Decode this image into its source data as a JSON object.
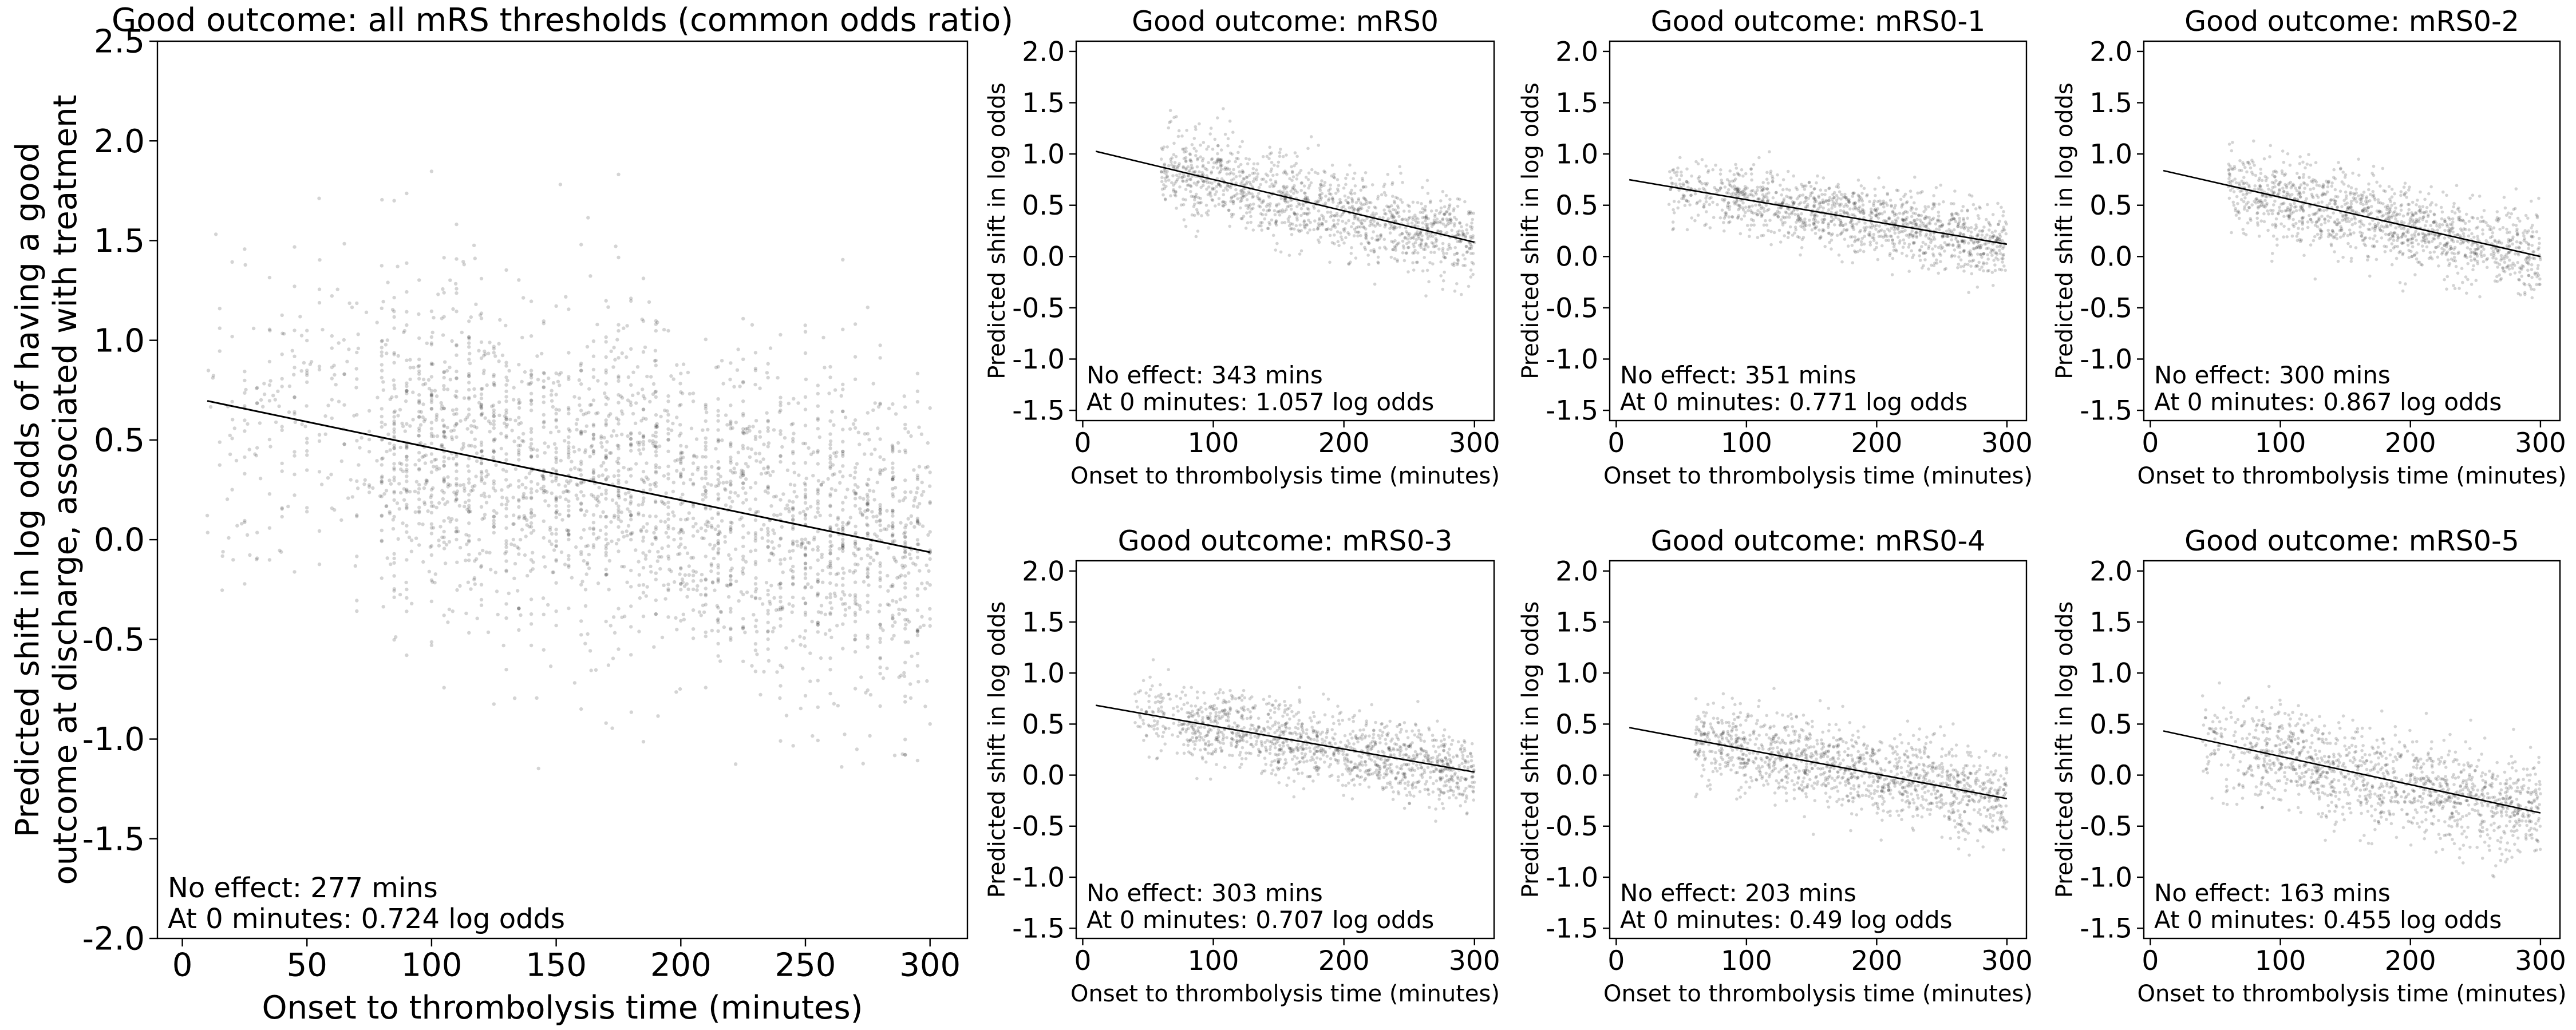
{
  "chart_data": [
    {
      "type": "scatter",
      "title": "Good outcome: all mRS thresholds (common odds ratio)",
      "xlabel": "Onset to thrombolysis time (minutes)",
      "ylabel": [
        "Predicted shift in log odds of having a good",
        "outcome at discharge, associated with treatment"
      ],
      "xlim": [
        -10,
        315
      ],
      "ylim": [
        -2.0,
        2.5
      ],
      "xticks": [
        "0",
        "50",
        "100",
        "150",
        "200",
        "250",
        "300"
      ],
      "yticks": [
        "-2.0",
        "-1.5",
        "-1.0",
        "-0.5",
        "0.0",
        "0.5",
        "1.0",
        "1.5",
        "2.0",
        "2.5"
      ],
      "trend_line": {
        "x": [
          10,
          300
        ],
        "y": [
          0.696,
          -0.063
        ]
      },
      "annotations": [
        "No effect: 277 mins",
        "At 0 minutes: 0.724 log odds"
      ],
      "no_effect_minutes": 277,
      "log_odds_at_0": 0.724,
      "points": {
        "count": 3000,
        "xrange": [
          10,
          300
        ],
        "dense_xrange": [
          80,
          300
        ],
        "center_at_0": 0.724,
        "slope_per_min": -0.00262,
        "spread": 0.42
      }
    },
    {
      "type": "scatter",
      "title": "Good outcome: mRS0",
      "xlabel": "Onset to thrombolysis time (minutes)",
      "ylabel": [
        "Predicted shift in log odds"
      ],
      "xlim": [
        -5,
        315
      ],
      "ylim": [
        -1.6,
        2.1
      ],
      "xticks": [
        "0",
        "100",
        "200",
        "300"
      ],
      "yticks": [
        "-1.5",
        "-1.0",
        "-0.5",
        "0.0",
        "0.5",
        "1.0",
        "1.5",
        "2.0"
      ],
      "trend_line": {
        "x": [
          10,
          300
        ],
        "y": [
          1.026,
          0.14
        ]
      },
      "annotations": [
        "No effect: 343 mins",
        "At 0 minutes: 1.057 log odds"
      ],
      "no_effect_minutes": 343,
      "log_odds_at_0": 1.057,
      "points": {
        "count": 1300,
        "xrange": [
          60,
          300
        ],
        "dense_xrange": [
          80,
          300
        ],
        "center_at_0": 1.057,
        "slope_per_min": -0.00308,
        "spread": 0.2
      }
    },
    {
      "type": "scatter",
      "title": "Good outcome: mRS0-1",
      "xlabel": "Onset to thrombolysis time (minutes)",
      "ylabel": [
        "Predicted shift in log odds"
      ],
      "xlim": [
        -5,
        315
      ],
      "ylim": [
        -1.6,
        2.1
      ],
      "xticks": [
        "0",
        "100",
        "200",
        "300"
      ],
      "yticks": [
        "-1.5",
        "-1.0",
        "-0.5",
        "0.0",
        "0.5",
        "1.0",
        "1.5",
        "2.0"
      ],
      "trend_line": {
        "x": [
          10,
          300
        ],
        "y": [
          0.749,
          0.12
        ]
      },
      "annotations": [
        "No effect: 351 mins",
        "At 0 minutes: 0.771 log odds"
      ],
      "no_effect_minutes": 351,
      "log_odds_at_0": 0.771,
      "points": {
        "count": 1300,
        "xrange": [
          40,
          300
        ],
        "dense_xrange": [
          80,
          300
        ],
        "center_at_0": 0.771,
        "slope_per_min": -0.0022,
        "spread": 0.17
      }
    },
    {
      "type": "scatter",
      "title": "Good outcome: mRS0-2",
      "xlabel": "Onset to thrombolysis time (minutes)",
      "ylabel": [
        "Predicted shift in log odds"
      ],
      "xlim": [
        -5,
        315
      ],
      "ylim": [
        -1.6,
        2.1
      ],
      "xticks": [
        "0",
        "100",
        "200",
        "300"
      ],
      "yticks": [
        "-1.5",
        "-1.0",
        "-0.5",
        "0.0",
        "0.5",
        "1.0",
        "1.5",
        "2.0"
      ],
      "trend_line": {
        "x": [
          10,
          300
        ],
        "y": [
          0.838,
          0.0
        ]
      },
      "annotations": [
        "No effect: 300 mins",
        "At 0 minutes: 0.867 log odds"
      ],
      "no_effect_minutes": 300,
      "log_odds_at_0": 0.867,
      "points": {
        "count": 1300,
        "xrange": [
          60,
          300
        ],
        "dense_xrange": [
          80,
          300
        ],
        "center_at_0": 0.867,
        "slope_per_min": -0.00289,
        "spread": 0.2
      }
    },
    {
      "type": "scatter",
      "title": "Good outcome: mRS0-3",
      "xlabel": "Onset to thrombolysis time (minutes)",
      "ylabel": [
        "Predicted shift in log odds"
      ],
      "xlim": [
        -5,
        315
      ],
      "ylim": [
        -1.6,
        2.1
      ],
      "xticks": [
        "0",
        "100",
        "200",
        "300"
      ],
      "yticks": [
        "-1.5",
        "-1.0",
        "-0.5",
        "0.0",
        "0.5",
        "1.0",
        "1.5",
        "2.0"
      ],
      "trend_line": {
        "x": [
          10,
          300
        ],
        "y": [
          0.684,
          0.03
        ]
      },
      "annotations": [
        "No effect: 303 mins",
        "At 0 minutes: 0.707 log odds"
      ],
      "no_effect_minutes": 303,
      "log_odds_at_0": 0.707,
      "points": {
        "count": 1300,
        "xrange": [
          40,
          300
        ],
        "dense_xrange": [
          80,
          300
        ],
        "center_at_0": 0.707,
        "slope_per_min": -0.00233,
        "spread": 0.18
      }
    },
    {
      "type": "scatter",
      "title": "Good outcome: mRS0-4",
      "xlabel": "Onset to thrombolysis time (minutes)",
      "ylabel": [
        "Predicted shift in log odds"
      ],
      "xlim": [
        -5,
        315
      ],
      "ylim": [
        -1.6,
        2.1
      ],
      "xticks": [
        "0",
        "100",
        "200",
        "300"
      ],
      "yticks": [
        "-1.5",
        "-1.0",
        "-0.5",
        "0.0",
        "0.5",
        "1.0",
        "1.5",
        "2.0"
      ],
      "trend_line": {
        "x": [
          10,
          300
        ],
        "y": [
          0.466,
          -0.23
        ]
      },
      "annotations": [
        "No effect: 203 mins",
        "At 0 minutes: 0.49 log odds"
      ],
      "no_effect_minutes": 203,
      "log_odds_at_0": 0.49,
      "points": {
        "count": 1300,
        "xrange": [
          60,
          300
        ],
        "dense_xrange": [
          80,
          300
        ],
        "center_at_0": 0.49,
        "slope_per_min": -0.0024,
        "spread": 0.2
      }
    },
    {
      "type": "scatter",
      "title": "Good outcome: mRS0-5",
      "xlabel": "Onset to thrombolysis time (minutes)",
      "ylabel": [
        "Predicted shift in log odds"
      ],
      "xlim": [
        -5,
        315
      ],
      "ylim": [
        -1.6,
        2.1
      ],
      "xticks": [
        "0",
        "100",
        "200",
        "300"
      ],
      "yticks": [
        "-1.5",
        "-1.0",
        "-0.5",
        "0.0",
        "0.5",
        "1.0",
        "1.5",
        "2.0"
      ],
      "trend_line": {
        "x": [
          10,
          300
        ],
        "y": [
          0.433,
          -0.37
        ]
      },
      "annotations": [
        "No effect: 163 mins",
        "At 0 minutes: 0.455 log odds"
      ],
      "no_effect_minutes": 163,
      "log_odds_at_0": 0.455,
      "points": {
        "count": 1300,
        "xrange": [
          40,
          300
        ],
        "dense_xrange": [
          80,
          300
        ],
        "center_at_0": 0.455,
        "slope_per_min": -0.00279,
        "spread": 0.25
      }
    }
  ],
  "colors": {
    "points": "#000000",
    "line": "#000000",
    "background": "#ffffff"
  }
}
